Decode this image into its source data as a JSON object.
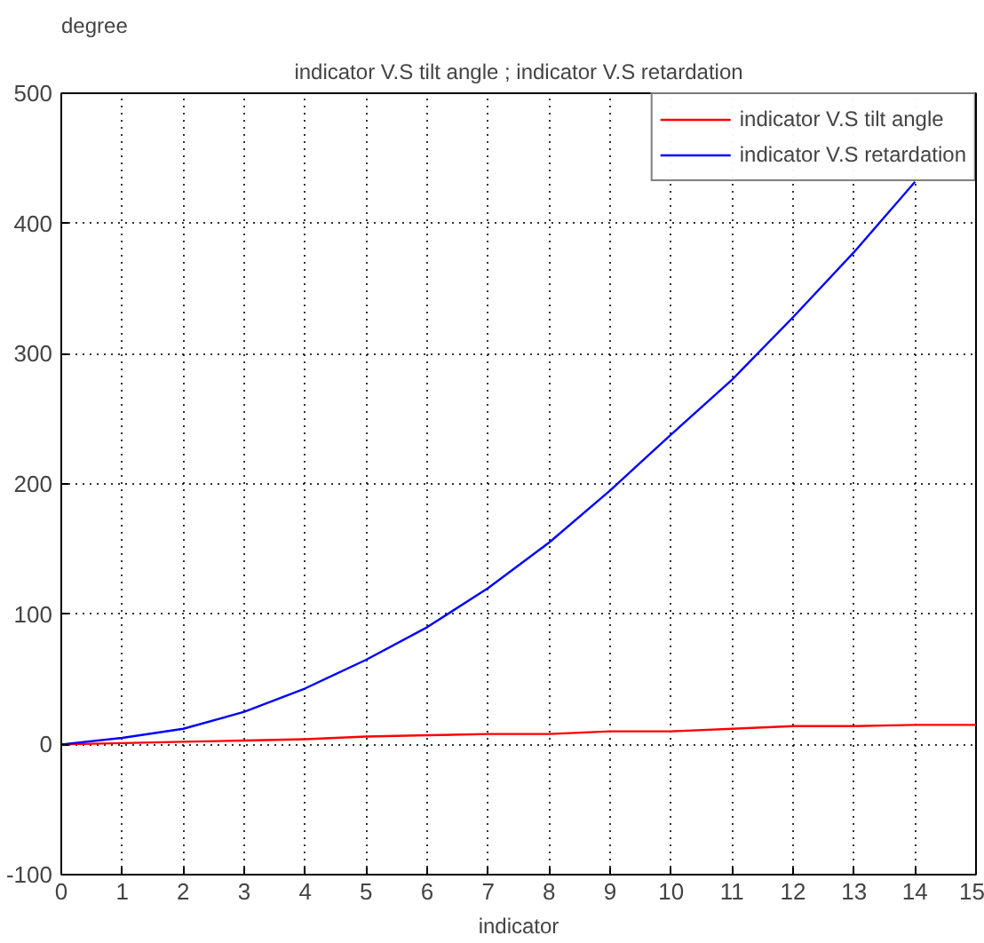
{
  "chart_data": {
    "type": "line",
    "title": "indicator V.S tilt angle ; indicator V.S retardation",
    "xlabel": "indicator",
    "ylabel": "degree",
    "x": [
      0,
      1,
      2,
      3,
      4,
      5,
      6,
      7,
      8,
      9,
      10,
      11,
      12,
      13,
      14
    ],
    "series": [
      {
        "name": "indicator V.S tilt angle",
        "color": "#ff0000",
        "x": [
          0,
          1,
          2,
          3,
          4,
          5,
          6,
          7,
          8,
          9,
          10,
          11,
          12,
          13,
          14,
          15
        ],
        "values": [
          0,
          1,
          2,
          3,
          4,
          6,
          7,
          8,
          8,
          10,
          10,
          12,
          14,
          14,
          15,
          15
        ]
      },
      {
        "name": "indicator V.S retardation",
        "color": "#0000ff",
        "values": [
          0,
          5,
          12,
          25,
          43,
          65,
          90,
          120,
          155,
          195,
          238,
          280,
          328,
          378,
          432
        ]
      }
    ],
    "xlim": [
      0,
      15
    ],
    "ylim": [
      -100,
      500
    ],
    "xticks": [
      0,
      1,
      2,
      3,
      4,
      5,
      6,
      7,
      8,
      9,
      10,
      11,
      12,
      13,
      14,
      15
    ],
    "yticks": [
      -100,
      0,
      100,
      200,
      300,
      400,
      500
    ],
    "grid": true,
    "legend": "top right",
    "line_style": "solid"
  }
}
